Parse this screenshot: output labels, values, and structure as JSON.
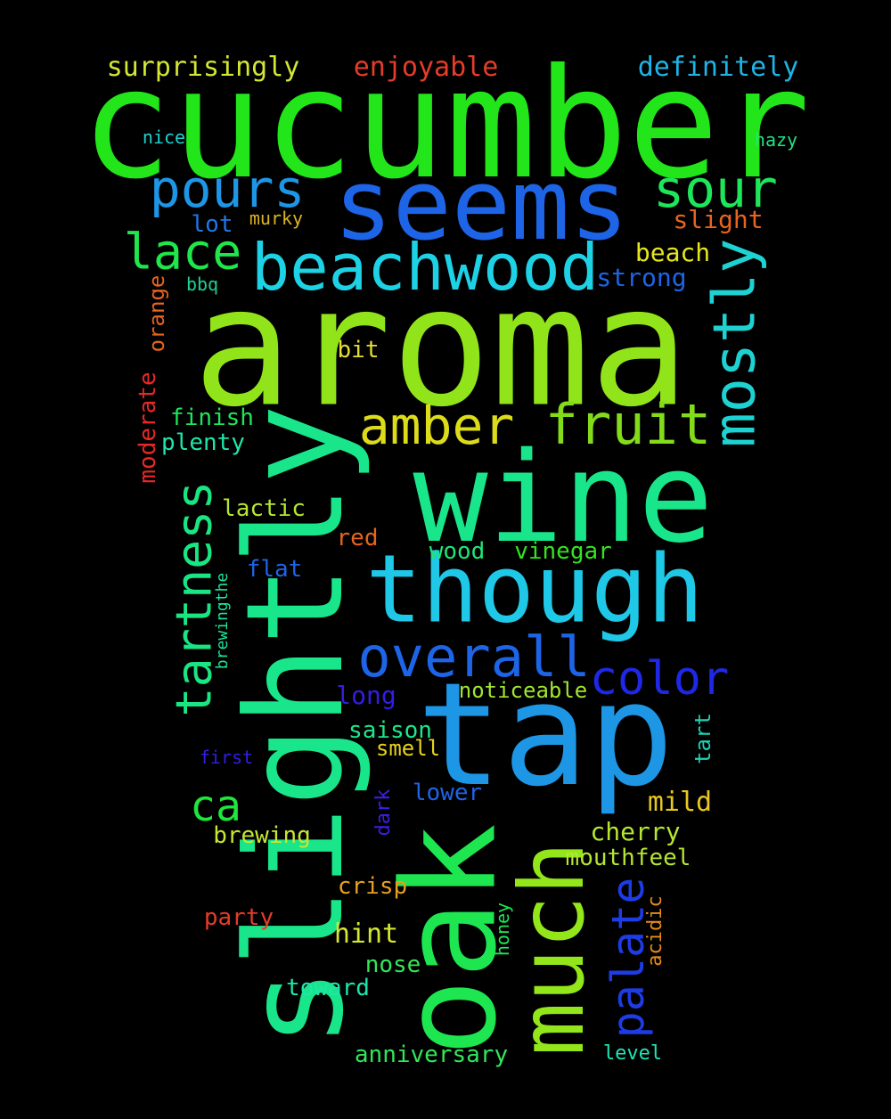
{
  "words": [
    {
      "text": "cucumber",
      "color": "#22e61a",
      "o": "h"
    },
    {
      "text": "aroma",
      "color": "#92e41a",
      "o": "h"
    },
    {
      "text": "wine",
      "color": "#19e68a",
      "o": "h"
    },
    {
      "text": "slightly",
      "color": "#19e68a",
      "o": "v"
    },
    {
      "text": "tap",
      "color": "#1e96e6",
      "o": "h"
    },
    {
      "text": "oak",
      "color": "#1ee650",
      "o": "v"
    },
    {
      "text": "much",
      "color": "#92e61a",
      "o": "v"
    },
    {
      "text": "seems",
      "color": "#1e64e6",
      "o": "h"
    },
    {
      "text": "though",
      "color": "#1ec8e6",
      "o": "h"
    },
    {
      "text": "beachwood",
      "color": "#1ed2e6",
      "o": "h"
    },
    {
      "text": "fruit",
      "color": "#82dc1a",
      "o": "h"
    },
    {
      "text": "amber",
      "color": "#dcdc1a",
      "o": "h"
    },
    {
      "text": "mostly",
      "color": "#1ed2d2",
      "o": "v"
    },
    {
      "text": "overall",
      "color": "#1e64e6",
      "o": "h"
    },
    {
      "text": "pours",
      "color": "#1e96e6",
      "o": "h"
    },
    {
      "text": "sour",
      "color": "#1ee65a",
      "o": "h"
    },
    {
      "text": "lace",
      "color": "#1ee64b",
      "o": "h"
    },
    {
      "text": "tartness",
      "color": "#19e682",
      "o": "v"
    },
    {
      "text": "color",
      "color": "#1e28e6",
      "o": "h"
    },
    {
      "text": "palate",
      "color": "#1e3ce6",
      "o": "v"
    },
    {
      "text": "ca",
      "color": "#1ee63c",
      "o": "h"
    },
    {
      "text": "surprisingly",
      "color": "#d2e632",
      "o": "h"
    },
    {
      "text": "enjoyable",
      "color": "#e63c28",
      "o": "h"
    },
    {
      "text": "definitely",
      "color": "#1eb4e6",
      "o": "h"
    },
    {
      "text": "nice",
      "color": "#1ed2d2",
      "o": "h"
    },
    {
      "text": "hazy",
      "color": "#1ee682",
      "o": "h"
    },
    {
      "text": "lot",
      "color": "#1e78e6",
      "o": "h"
    },
    {
      "text": "murky",
      "color": "#dcb41e",
      "o": "h"
    },
    {
      "text": "slight",
      "color": "#e6641e",
      "o": "h"
    },
    {
      "text": "beach",
      "color": "#e6e61e",
      "o": "h"
    },
    {
      "text": "strong",
      "color": "#1e64e6",
      "o": "h"
    },
    {
      "text": "bbq",
      "color": "#1ed296",
      "o": "h"
    },
    {
      "text": "orange",
      "color": "#e6641e",
      "o": "v"
    },
    {
      "text": "bit",
      "color": "#e6dc32",
      "o": "h"
    },
    {
      "text": "moderate",
      "color": "#e62828",
      "o": "v"
    },
    {
      "text": "finish",
      "color": "#1ee65a",
      "o": "h"
    },
    {
      "text": "plenty",
      "color": "#1ee6aa",
      "o": "h"
    },
    {
      "text": "lactic",
      "color": "#b4e632",
      "o": "h"
    },
    {
      "text": "red",
      "color": "#e6641e",
      "o": "h"
    },
    {
      "text": "wood",
      "color": "#1ee678",
      "o": "h"
    },
    {
      "text": "vinegar",
      "color": "#32e61e",
      "o": "h"
    },
    {
      "text": "flat",
      "color": "#1e64e6",
      "o": "h"
    },
    {
      "text": "brewingthe",
      "color": "#1ee69b",
      "o": "v"
    },
    {
      "text": "long",
      "color": "#321ee6",
      "o": "h"
    },
    {
      "text": "noticeable",
      "color": "#a0e632",
      "o": "h"
    },
    {
      "text": "saison",
      "color": "#1ee68c",
      "o": "h"
    },
    {
      "text": "smell",
      "color": "#e6d21e",
      "o": "h"
    },
    {
      "text": "tart",
      "color": "#1ed2b4",
      "o": "v"
    },
    {
      "text": "first",
      "color": "#321ee6",
      "o": "h"
    },
    {
      "text": "lower",
      "color": "#1e64e6",
      "o": "h"
    },
    {
      "text": "dark",
      "color": "#3c1ee6",
      "o": "v"
    },
    {
      "text": "mild",
      "color": "#e6c81e",
      "o": "h"
    },
    {
      "text": "brewing",
      "color": "#c8e632",
      "o": "h"
    },
    {
      "text": "cherry",
      "color": "#b4e632",
      "o": "h"
    },
    {
      "text": "mouthfeel",
      "color": "#b4e632",
      "o": "h"
    },
    {
      "text": "crisp",
      "color": "#e6a01e",
      "o": "h"
    },
    {
      "text": "acidic",
      "color": "#e68c1e",
      "o": "v"
    },
    {
      "text": "party",
      "color": "#e63c28",
      "o": "h"
    },
    {
      "text": "honey",
      "color": "#1ee65a",
      "o": "v"
    },
    {
      "text": "hint",
      "color": "#d2e632",
      "o": "h"
    },
    {
      "text": "nose",
      "color": "#32e65a",
      "o": "h"
    },
    {
      "text": "toward",
      "color": "#1ee6aa",
      "o": "h"
    },
    {
      "text": "anniversary",
      "color": "#32e65a",
      "o": "h"
    },
    {
      "text": "level",
      "color": "#1ee6b4",
      "o": "h"
    }
  ]
}
